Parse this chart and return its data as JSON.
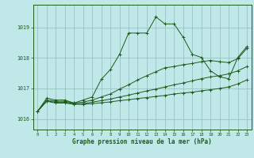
{
  "xlabel": "Graphe pression niveau de la mer (hPa)",
  "bg_color": "#c0e8e8",
  "grid_color": "#90bcbc",
  "line_color": "#1a5c1a",
  "ylim": [
    1015.65,
    1019.75
  ],
  "xlim": [
    -0.5,
    23.5
  ],
  "yticks": [
    1016,
    1017,
    1018,
    1019
  ],
  "xticks": [
    0,
    1,
    2,
    3,
    4,
    5,
    6,
    7,
    8,
    9,
    10,
    11,
    12,
    13,
    14,
    15,
    16,
    17,
    18,
    19,
    20,
    21,
    22,
    23
  ],
  "series": [
    {
      "x": [
        0,
        1,
        2,
        3,
        4,
        5,
        6,
        7,
        8,
        9,
        10,
        11,
        12,
        13,
        14,
        15,
        16,
        17,
        18,
        19,
        20,
        21,
        22,
        23
      ],
      "y": [
        1016.25,
        1016.68,
        1016.62,
        1016.62,
        1016.52,
        1016.62,
        1016.72,
        1017.3,
        1017.62,
        1018.12,
        1018.82,
        1018.82,
        1018.82,
        1019.35,
        1019.12,
        1019.12,
        1018.68,
        1018.12,
        1018.02,
        1017.58,
        1017.38,
        1017.32,
        1018.02,
        1018.38
      ]
    },
    {
      "x": [
        0,
        1,
        2,
        3,
        4,
        5,
        6,
        7,
        8,
        9,
        10,
        11,
        12,
        13,
        14,
        15,
        16,
        17,
        18,
        19,
        20,
        21,
        22,
        23
      ],
      "y": [
        1016.25,
        1016.62,
        1016.58,
        1016.58,
        1016.52,
        1016.55,
        1016.62,
        1016.72,
        1016.82,
        1016.98,
        1017.12,
        1017.28,
        1017.42,
        1017.55,
        1017.68,
        1017.72,
        1017.78,
        1017.82,
        1017.88,
        1017.92,
        1017.88,
        1017.85,
        1017.98,
        1018.32
      ]
    },
    {
      "x": [
        0,
        1,
        2,
        3,
        4,
        5,
        6,
        7,
        8,
        9,
        10,
        11,
        12,
        13,
        14,
        15,
        16,
        17,
        18,
        19,
        20,
        21,
        22,
        23
      ],
      "y": [
        1016.25,
        1016.58,
        1016.55,
        1016.55,
        1016.5,
        1016.5,
        1016.55,
        1016.6,
        1016.65,
        1016.72,
        1016.78,
        1016.85,
        1016.92,
        1016.98,
        1017.05,
        1017.12,
        1017.18,
        1017.25,
        1017.32,
        1017.38,
        1017.42,
        1017.48,
        1017.58,
        1017.72
      ]
    },
    {
      "x": [
        0,
        1,
        2,
        3,
        4,
        5,
        6,
        7,
        8,
        9,
        10,
        11,
        12,
        13,
        14,
        15,
        16,
        17,
        18,
        19,
        20,
        21,
        22,
        23
      ],
      "y": [
        1016.25,
        1016.58,
        1016.52,
        1016.52,
        1016.48,
        1016.48,
        1016.5,
        1016.53,
        1016.56,
        1016.6,
        1016.63,
        1016.67,
        1016.7,
        1016.74,
        1016.77,
        1016.82,
        1016.85,
        1016.88,
        1016.92,
        1016.96,
        1017.0,
        1017.05,
        1017.15,
        1017.28
      ]
    }
  ]
}
